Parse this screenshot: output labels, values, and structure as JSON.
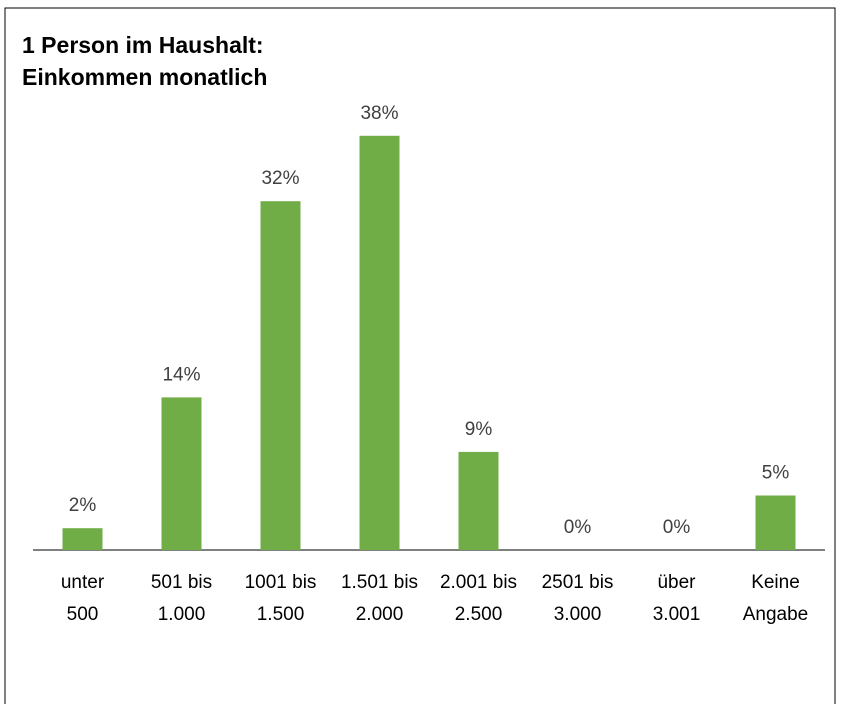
{
  "chart_data": {
    "type": "bar",
    "title": [
      "1 Person im Haushalt:",
      "Einkommen monatlich"
    ],
    "categories": [
      [
        "unter",
        "500"
      ],
      [
        "501 bis",
        "1.000"
      ],
      [
        "1001 bis",
        "1.500"
      ],
      [
        "1.501 bis",
        "2.000"
      ],
      [
        "2.001 bis",
        "2.500"
      ],
      [
        "2501 bis",
        "3.000"
      ],
      [
        "über",
        "3.001"
      ],
      [
        "Keine",
        "Angabe"
      ]
    ],
    "values": [
      2,
      14,
      32,
      38,
      9,
      0,
      0,
      5
    ],
    "value_labels": [
      "2%",
      "14%",
      "32%",
      "38%",
      "9%",
      "0%",
      "0%",
      "5%"
    ],
    "color": "#70ad47",
    "ylim": [
      0,
      40
    ]
  }
}
